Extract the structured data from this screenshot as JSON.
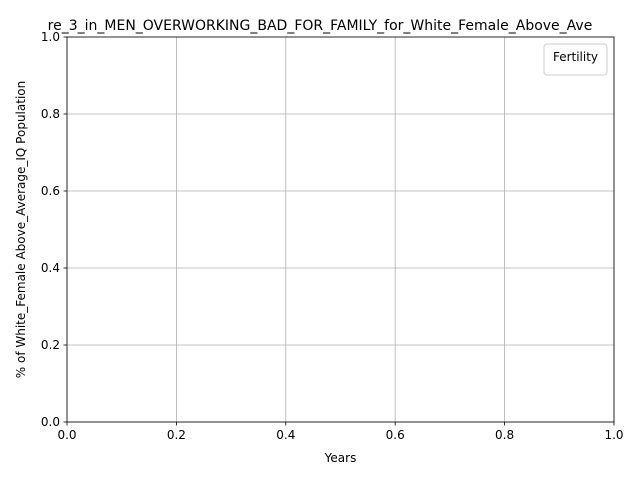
{
  "chart_data": {
    "type": "line",
    "title": "re_3_in_MEN_OVERWORKING_BAD_FOR_FAMILY_for_White_Female_Above_Ave",
    "xlabel": "Years",
    "ylabel": "% of White_Female Above_Average_IQ Population",
    "xlim": [
      0.0,
      1.0
    ],
    "ylim": [
      0.0,
      1.0
    ],
    "x_ticks": [
      "0.0",
      "0.2",
      "0.4",
      "0.6",
      "0.8",
      "1.0"
    ],
    "y_ticks": [
      "0.0",
      "0.2",
      "0.4",
      "0.6",
      "0.8",
      "1.0"
    ],
    "grid": true,
    "legend": {
      "title": "Fertility",
      "placement": "top-right",
      "entries": []
    },
    "series": []
  }
}
